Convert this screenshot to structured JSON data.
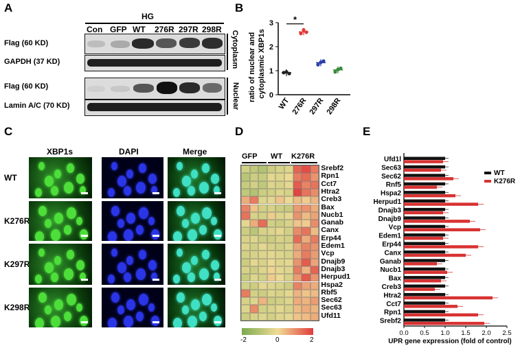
{
  "panels": {
    "a": "A",
    "b": "B",
    "c": "C",
    "d": "D",
    "e": "E"
  },
  "panelA": {
    "condition": "HG",
    "lanes": [
      "Con",
      "GFP",
      "WT",
      "276R",
      "297R",
      "298R"
    ],
    "rows": [
      "Flag (60 KD)",
      "GAPDH (37 KD)",
      "Flag (60 KD)",
      "Lamin A/C (70 KD)"
    ],
    "fractions": {
      "cytoplasm": "Cytoplasm",
      "nuclear": "Nuclear"
    }
  },
  "panelB": {
    "ylabel": "ratio of nuclear and cytoplasmic XBP1s",
    "significance": "*",
    "colors": [
      "#222222",
      "#e23a3a",
      "#2c3ea8",
      "#3a8a3a"
    ],
    "chart_data": {
      "type": "scatter",
      "categories": [
        "WT",
        "276R",
        "297R",
        "298R"
      ],
      "ylim": [
        0,
        3
      ],
      "yticks": [
        "0",
        "1",
        "2",
        "3"
      ],
      "series": [
        {
          "name": "WT",
          "values": [
            0.92,
            0.95,
            0.88
          ]
        },
        {
          "name": "276R",
          "values": [
            2.55,
            2.7,
            2.6
          ]
        },
        {
          "name": "297R",
          "values": [
            1.25,
            1.35,
            1.4
          ]
        },
        {
          "name": "298R",
          "values": [
            0.95,
            1.05,
            1.1
          ]
        }
      ]
    }
  },
  "panelC": {
    "columns": [
      "XBP1s",
      "DAPI",
      "Merge"
    ],
    "rows": [
      "WT",
      "K276R",
      "K297R",
      "K298R"
    ]
  },
  "panelD": {
    "groups": [
      "GFP",
      "WT",
      "K276R"
    ],
    "genes": [
      "Srebf2",
      "Rpn1",
      "Cct7",
      "Htra2",
      "Creb3",
      "Bax",
      "Nucb1",
      "Ganab",
      "Canx",
      "Erp44",
      "Edem1",
      "Vcp",
      "Dnajb9",
      "Dnajb3",
      "Herpud1",
      "Hspa2",
      "Rbf5",
      "Sec62",
      "Sec63",
      "Ufd11"
    ],
    "colorbar": {
      "min": "-2",
      "mid": "0",
      "max": "2"
    }
  },
  "panelE": {
    "xlabel": "UPR gene expression (fold of control)",
    "legend": {
      "wt": "WT",
      "k276r": "K276R"
    },
    "colors": {
      "wt": "#111111",
      "k276r": "#d83232"
    },
    "chart_data": {
      "type": "bar",
      "categories": [
        "Ufd1l",
        "Sec63",
        "Sec62",
        "Rnf5",
        "Hspa2",
        "Herpud1",
        "Dnajb3",
        "Dnajb9",
        "Vcp",
        "Edem1",
        "Erp44",
        "Canx",
        "Ganab",
        "Nucb1",
        "Bax",
        "Creb3",
        "Htra2",
        "Cct7",
        "Rpn1",
        "Srebf2"
      ],
      "xlim": [
        0,
        2.5
      ],
      "xticks": [
        "0.0",
        "0.5",
        "1.0",
        "1.5",
        "2.0",
        "2.5"
      ],
      "series": [
        {
          "name": "WT",
          "values": [
            1.0,
            1.0,
            1.0,
            1.0,
            1.0,
            1.0,
            1.0,
            1.0,
            1.0,
            1.0,
            1.0,
            1.0,
            1.0,
            1.0,
            1.0,
            1.0,
            1.0,
            1.0,
            1.0,
            1.0
          ]
        },
        {
          "name": "K276R",
          "values": [
            0.95,
            0.9,
            1.2,
            0.8,
            1.25,
            1.8,
            0.95,
            1.6,
            1.85,
            0.95,
            1.8,
            1.5,
            0.8,
            1.05,
            0.9,
            0.75,
            2.15,
            1.3,
            1.8,
            1.95
          ]
        }
      ]
    }
  }
}
